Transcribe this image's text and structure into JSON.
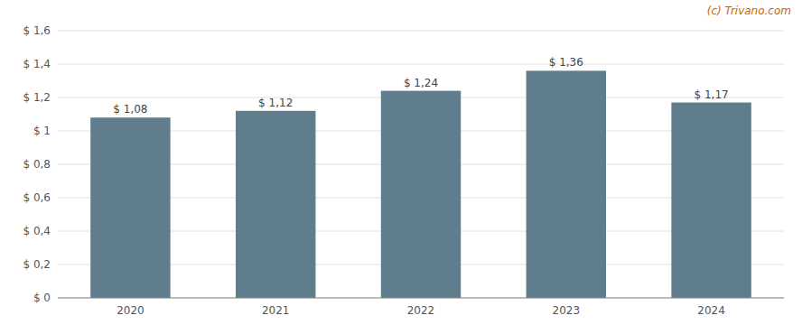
{
  "chart_data": {
    "type": "bar",
    "categories": [
      "2020",
      "2021",
      "2022",
      "2023",
      "2024"
    ],
    "values": [
      1.08,
      1.12,
      1.24,
      1.36,
      1.17
    ],
    "value_labels": [
      "$ 1,08",
      "$ 1,12",
      "$ 1,24",
      "$ 1,36",
      "$ 1,17"
    ],
    "data_labels": true,
    "color": "#5f7d8c",
    "ylim": [
      0,
      1.6
    ],
    "yticks": [
      {
        "value": 0,
        "label": "$ 0"
      },
      {
        "value": 0.2,
        "label": "$ 0,2"
      },
      {
        "value": 0.4,
        "label": "$ 0,4"
      },
      {
        "value": 0.6,
        "label": "$ 0,6"
      },
      {
        "value": 0.8,
        "label": "$ 0,8"
      },
      {
        "value": 1.0,
        "label": "$ 1"
      },
      {
        "value": 1.2,
        "label": "$ 1,2"
      },
      {
        "value": 1.4,
        "label": "$ 1,4"
      },
      {
        "value": 1.6,
        "label": "$ 1,6"
      }
    ],
    "grid": true,
    "annotations": [
      "(c) Trivano.com"
    ]
  }
}
